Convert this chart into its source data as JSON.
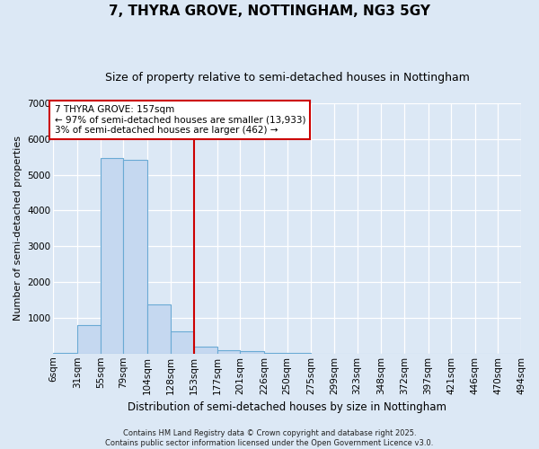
{
  "title": "7, THYRA GROVE, NOTTINGHAM, NG3 5GY",
  "subtitle": "Size of property relative to semi-detached houses in Nottingham",
  "xlabel": "Distribution of semi-detached houses by size in Nottingham",
  "ylabel": "Number of semi-detached properties",
  "bar_color": "#c5d8f0",
  "bar_edge_color": "#6aaad4",
  "background_color": "#dce8f5",
  "fig_background_color": "#dce8f5",
  "vline_color": "#cc0000",
  "vline_x": 153,
  "annotation_text": "7 THYRA GROVE: 157sqm\n← 97% of semi-detached houses are smaller (13,933)\n3% of semi-detached houses are larger (462) →",
  "annotation_box_color": "#cc0000",
  "bins": [
    6,
    31,
    55,
    79,
    104,
    128,
    153,
    177,
    201,
    226,
    250,
    275,
    299,
    323,
    348,
    372,
    397,
    421,
    446,
    470,
    494
  ],
  "bin_labels": [
    "6sqm",
    "31sqm",
    "55sqm",
    "79sqm",
    "104sqm",
    "128sqm",
    "153sqm",
    "177sqm",
    "201sqm",
    "226sqm",
    "250sqm",
    "275sqm",
    "299sqm",
    "323sqm",
    "348sqm",
    "372sqm",
    "397sqm",
    "421sqm",
    "446sqm",
    "470sqm",
    "494sqm"
  ],
  "values": [
    30,
    790,
    5480,
    5430,
    1380,
    620,
    185,
    105,
    60,
    30,
    10,
    0,
    0,
    0,
    0,
    0,
    0,
    0,
    0,
    0
  ],
  "ylim": [
    0,
    7000
  ],
  "yticks": [
    0,
    1000,
    2000,
    3000,
    4000,
    5000,
    6000,
    7000
  ],
  "footer": "Contains HM Land Registry data © Crown copyright and database right 2025.\nContains public sector information licensed under the Open Government Licence v3.0.",
  "title_fontsize": 11,
  "subtitle_fontsize": 9,
  "xlabel_fontsize": 8.5,
  "ylabel_fontsize": 8,
  "tick_fontsize": 7.5,
  "footer_fontsize": 6
}
